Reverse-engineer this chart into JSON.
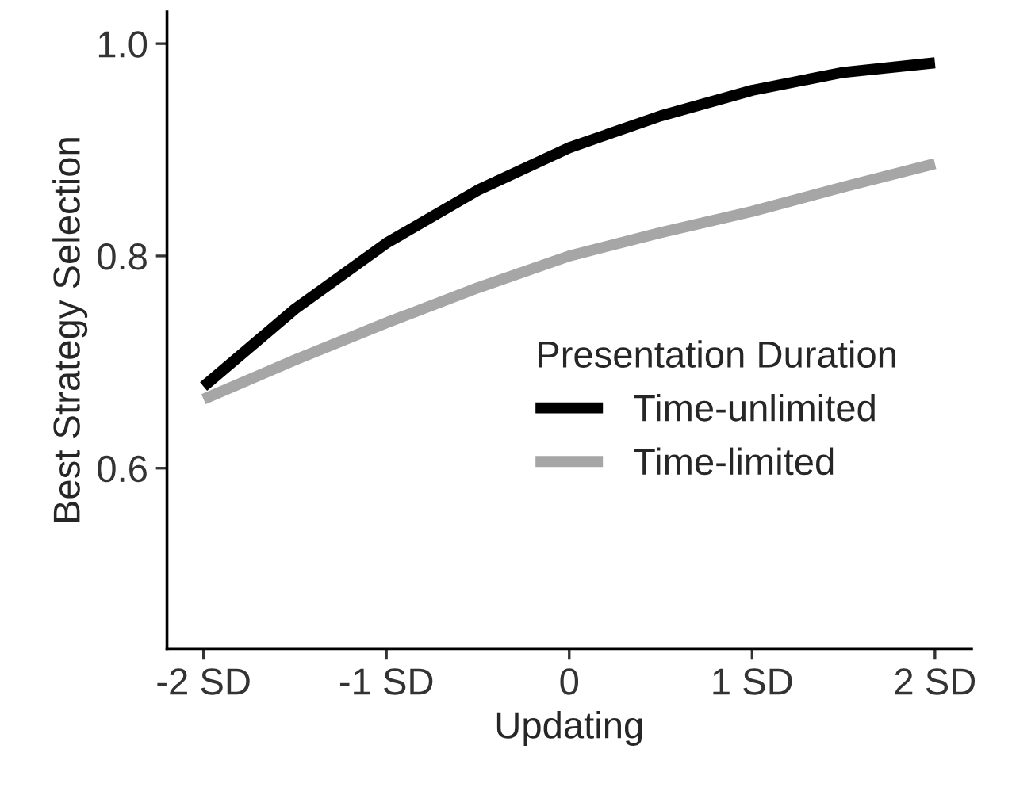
{
  "chart_data": {
    "type": "line",
    "xlabel": "Updating",
    "ylabel": "Best Strategy Selection",
    "legend_title": "Presentation Duration",
    "legend": "bottom right",
    "grid": false,
    "line_style": "solid",
    "marker": "none",
    "x": [
      -2,
      -1.5,
      -1,
      -0.5,
      0,
      0.5,
      1,
      1.5,
      2
    ],
    "xlim": [
      -2.2,
      2.2
    ],
    "xticks": [
      {
        "value": -2,
        "label": "-2 SD"
      },
      {
        "value": -1,
        "label": "-1 SD"
      },
      {
        "value": 0,
        "label": "0"
      },
      {
        "value": 1,
        "label": "1 SD"
      },
      {
        "value": 2,
        "label": "2 SD"
      }
    ],
    "ylim": [
      0.43,
      1.03
    ],
    "yticks": [
      {
        "value": 0.6,
        "label": "0.6"
      },
      {
        "value": 0.8,
        "label": "0.8"
      },
      {
        "value": 1.0,
        "label": "1.0"
      }
    ],
    "series": [
      {
        "name": "Time-unlimited",
        "color": "#000000",
        "values": [
          0.677,
          0.75,
          0.812,
          0.862,
          0.902,
          0.932,
          0.956,
          0.973,
          0.982
        ]
      },
      {
        "name": "Time-limited",
        "color": "#a6a6a6",
        "values": [
          0.665,
          0.702,
          0.737,
          0.77,
          0.8,
          0.822,
          0.842,
          0.865,
          0.887
        ]
      }
    ]
  }
}
